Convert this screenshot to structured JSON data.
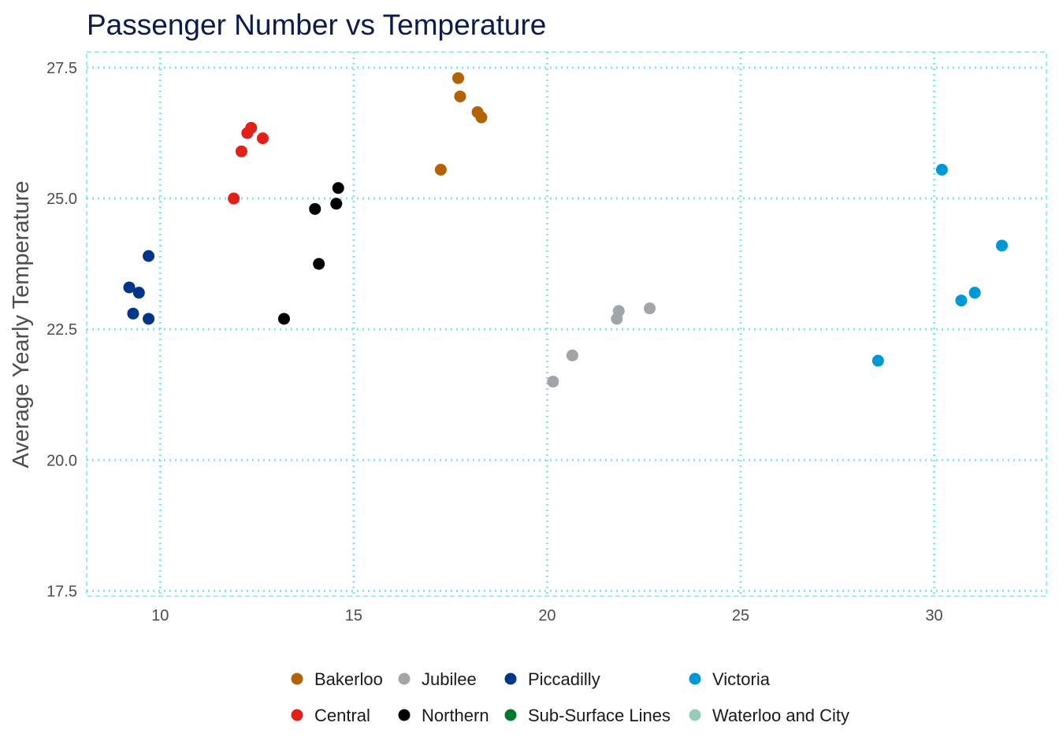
{
  "chart_data": {
    "type": "scatter",
    "title": "Passenger Number vs Temperature",
    "xlabel": "",
    "ylabel": "Average Yearly Temperature",
    "xlim": [
      8.1,
      32.9
    ],
    "ylim": [
      17.4,
      27.8
    ],
    "x_ticks": [
      10,
      15,
      20,
      25,
      30
    ],
    "y_ticks": [
      17.5,
      20.0,
      22.5,
      25.0,
      27.5
    ],
    "x_tick_labels": [
      "10",
      "15",
      "20",
      "25",
      "30"
    ],
    "y_tick_labels": [
      "17.5",
      "20.0",
      "22.5",
      "25.0",
      "27.5"
    ],
    "grid": true,
    "legend_position": "bottom",
    "series": [
      {
        "name": "Bakerloo",
        "color": "#b36305",
        "points": [
          [
            17.7,
            27.3
          ],
          [
            17.75,
            26.95
          ],
          [
            18.2,
            26.65
          ],
          [
            18.3,
            26.55
          ],
          [
            17.25,
            25.55
          ]
        ]
      },
      {
        "name": "Central",
        "color": "#e32017",
        "points": [
          [
            12.35,
            26.35
          ],
          [
            12.25,
            26.25
          ],
          [
            12.65,
            26.15
          ],
          [
            12.1,
            25.9
          ],
          [
            11.9,
            25.0
          ]
        ]
      },
      {
        "name": "Jubilee",
        "color": "#a0a5a9",
        "points": [
          [
            22.65,
            22.9
          ],
          [
            21.85,
            22.85
          ],
          [
            21.8,
            22.7
          ],
          [
            20.65,
            22.0
          ],
          [
            20.15,
            21.5
          ]
        ]
      },
      {
        "name": "Northern",
        "color": "#000000",
        "points": [
          [
            14.6,
            25.2
          ],
          [
            14.55,
            24.9
          ],
          [
            14.0,
            24.8
          ],
          [
            14.1,
            23.75
          ],
          [
            13.2,
            22.7
          ]
        ]
      },
      {
        "name": "Piccadilly",
        "color": "#003688",
        "points": [
          [
            9.7,
            23.9
          ],
          [
            9.2,
            23.3
          ],
          [
            9.45,
            23.2
          ],
          [
            9.3,
            22.8
          ],
          [
            9.7,
            22.7
          ]
        ]
      },
      {
        "name": "Sub-Surface Lines",
        "color": "#00782a",
        "points": []
      },
      {
        "name": "Victoria",
        "color": "#0098d4",
        "points": [
          [
            30.2,
            25.55
          ],
          [
            31.75,
            24.1
          ],
          [
            31.05,
            23.2
          ],
          [
            30.7,
            23.05
          ],
          [
            28.55,
            21.9
          ]
        ]
      },
      {
        "name": "Waterloo and City",
        "color": "#95cdba",
        "points": []
      }
    ],
    "legend_order": [
      "Bakerloo",
      "Central",
      "Jubilee",
      "Northern",
      "Piccadilly",
      "Sub-Surface Lines",
      "Victoria",
      "Waterloo and City"
    ],
    "grid_color": "#7fe8ec"
  }
}
